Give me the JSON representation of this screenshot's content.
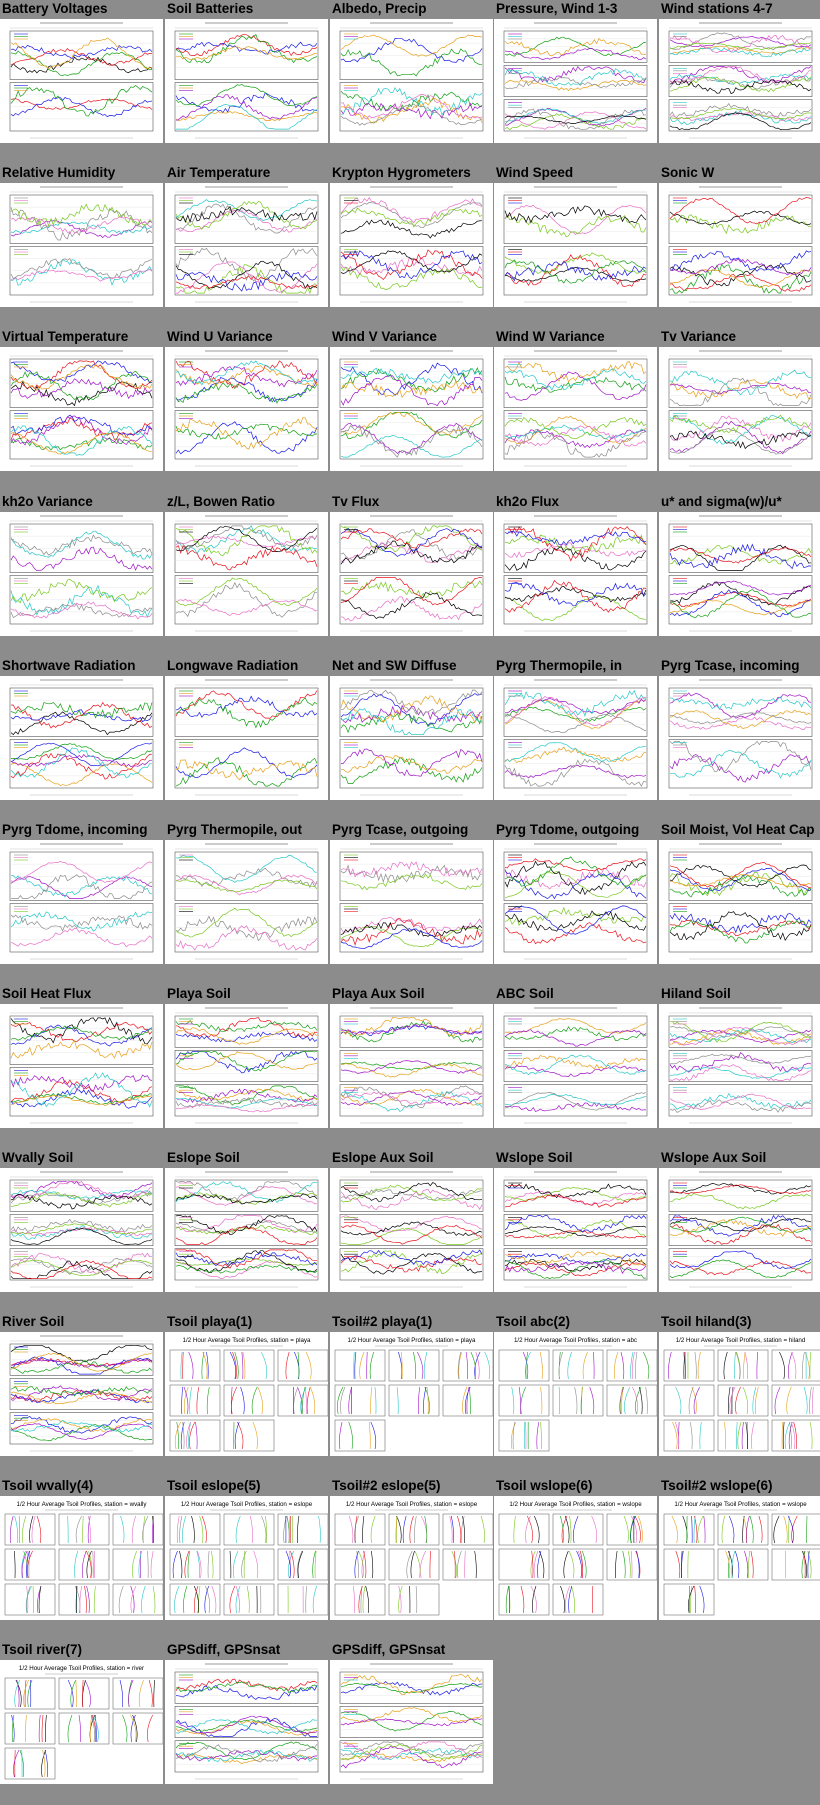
{
  "page": {
    "background": "#8c8c8c"
  },
  "thumbnails": [
    {
      "title": "Battery Voltages",
      "kind": "ts",
      "panels": 2
    },
    {
      "title": "Soil Batteries",
      "kind": "ts",
      "panels": 2
    },
    {
      "title": "Albedo, Precip",
      "kind": "ts",
      "panels": 2
    },
    {
      "title": "Pressure, Wind 1-3",
      "kind": "ts",
      "panels": 3
    },
    {
      "title": "Wind stations 4-7",
      "kind": "ts",
      "panels": 3
    },
    {
      "title": "Relative Humidity",
      "kind": "ts",
      "panels": 2
    },
    {
      "title": "Air Temperature",
      "kind": "ts",
      "panels": 2
    },
    {
      "title": "Krypton Hygrometers",
      "kind": "ts",
      "panels": 2
    },
    {
      "title": "Wind Speed",
      "kind": "ts",
      "panels": 2
    },
    {
      "title": "Sonic W",
      "kind": "ts",
      "panels": 2
    },
    {
      "title": "Virtual Temperature",
      "kind": "ts",
      "panels": 2
    },
    {
      "title": "Wind U Variance",
      "kind": "ts",
      "panels": 2
    },
    {
      "title": "Wind V Variance",
      "kind": "ts",
      "panels": 2
    },
    {
      "title": "Wind W Variance",
      "kind": "ts",
      "panels": 2
    },
    {
      "title": "Tv Variance",
      "kind": "ts",
      "panels": 2
    },
    {
      "title": "kh2o Variance",
      "kind": "ts",
      "panels": 2
    },
    {
      "title": "z/L, Bowen Ratio",
      "kind": "ts",
      "panels": 2
    },
    {
      "title": "Tv Flux",
      "kind": "ts",
      "panels": 2
    },
    {
      "title": "kh2o Flux",
      "kind": "ts",
      "panels": 2
    },
    {
      "title": "u* and sigma(w)/u*",
      "kind": "ts",
      "panels": 2
    },
    {
      "title": "Shortwave Radiation",
      "kind": "ts",
      "panels": 2
    },
    {
      "title": "Longwave Radiation",
      "kind": "ts",
      "panels": 2
    },
    {
      "title": "Net and SW Diffuse",
      "kind": "ts",
      "panels": 2
    },
    {
      "title": "Pyrg Thermopile, in",
      "kind": "ts",
      "panels": 2
    },
    {
      "title": "Pyrg Tcase, incoming",
      "kind": "ts",
      "panels": 2
    },
    {
      "title": "Pyrg Tdome, incoming",
      "kind": "ts",
      "panels": 2
    },
    {
      "title": "Pyrg Thermopile, out",
      "kind": "ts",
      "panels": 2
    },
    {
      "title": "Pyrg Tcase, outgoing",
      "kind": "ts",
      "panels": 2
    },
    {
      "title": "Pyrg Tdome, outgoing",
      "kind": "ts",
      "panels": 2
    },
    {
      "title": "Soil Moist, Vol Heat Cap",
      "kind": "ts",
      "panels": 2
    },
    {
      "title": "Soil Heat Flux",
      "kind": "ts",
      "panels": 2
    },
    {
      "title": "Playa Soil",
      "kind": "ts",
      "panels": 3
    },
    {
      "title": "Playa Aux Soil",
      "kind": "ts",
      "panels": 3
    },
    {
      "title": "ABC Soil",
      "kind": "ts",
      "panels": 3
    },
    {
      "title": "Hiland Soil",
      "kind": "ts",
      "panels": 3
    },
    {
      "title": "Wvally Soil",
      "kind": "ts",
      "panels": 3
    },
    {
      "title": "Eslope Soil",
      "kind": "ts",
      "panels": 3
    },
    {
      "title": "Eslope Aux Soil",
      "kind": "ts",
      "panels": 3
    },
    {
      "title": "Wslope Soil",
      "kind": "ts",
      "panels": 3
    },
    {
      "title": "Wslope Aux Soil",
      "kind": "ts",
      "panels": 3
    },
    {
      "title": "River Soil",
      "kind": "ts",
      "panels": 3
    },
    {
      "title": "Tsoil playa(1)",
      "kind": "profile",
      "heading": "1/2 Hour Average Tsoil Profiles, station = playa"
    },
    {
      "title": "Tsoil#2 playa(1)",
      "kind": "profile",
      "heading": "1/2 Hour Average Tsoil Profiles, station = playa"
    },
    {
      "title": "Tsoil abc(2)",
      "kind": "profile",
      "heading": "1/2 Hour Average Tsoil Profiles, station = abc"
    },
    {
      "title": "Tsoil hiland(3)",
      "kind": "profile",
      "heading": "1/2 Hour Average Tsoil Profiles, station = hiland"
    },
    {
      "title": "Tsoil wvally(4)",
      "kind": "profile",
      "heading": "1/2 Hour Average Tsoil Profiles, station = wvally"
    },
    {
      "title": "Tsoil eslope(5)",
      "kind": "profile",
      "heading": "1/2 Hour Average Tsoil Profiles, station = eslope"
    },
    {
      "title": "Tsoil#2 eslope(5)",
      "kind": "profile",
      "heading": "1/2 Hour Average Tsoil Profiles, station = eslope"
    },
    {
      "title": "Tsoil wslope(6)",
      "kind": "profile",
      "heading": "1/2 Hour Average Tsoil Profiles, station = wslope"
    },
    {
      "title": "Tsoil#2 wslope(6)",
      "kind": "profile",
      "heading": "1/2 Hour Average Tsoil Profiles, station = wslope"
    },
    {
      "title": "Tsoil river(7)",
      "kind": "profile",
      "heading": "1/2 Hour Average Tsoil Profiles, station = river"
    },
    {
      "title": "GPSdiff, GPSnsat",
      "kind": "ts",
      "panels": 3
    },
    {
      "title": "GPSdiff, GPSnsat",
      "kind": "ts",
      "panels": 3
    }
  ],
  "colors": {
    "series": [
      "#000000",
      "#e8141e",
      "#1a1ae6",
      "#14a014",
      "#e6a01a",
      "#a014c8",
      "#28c8c8",
      "#8c8c8c",
      "#e66ec8",
      "#78c81e"
    ]
  }
}
